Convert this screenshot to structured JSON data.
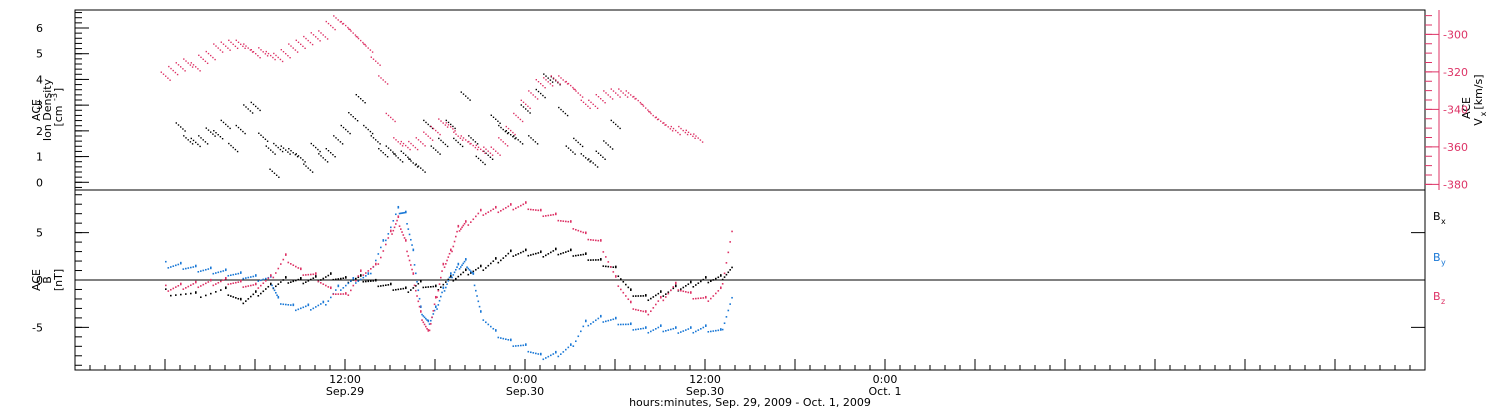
{
  "chart_data": [
    {
      "type": "scatter",
      "panel": "top",
      "ylabel_left": [
        "ACE",
        "Ion Density",
        "[cm",
        "-3",
        "]"
      ],
      "ylabel_right": [
        "ACE",
        "V",
        "x",
        "[km/s]"
      ],
      "ylim_left": [
        -0.3,
        6.7
      ],
      "ylim_right": [
        -383,
        -287
      ],
      "yticks_left": [
        "0",
        "1",
        "2",
        "3",
        "4",
        "5",
        "6"
      ],
      "yticks_right": [
        "-380",
        "-360",
        "-340",
        "-320",
        "-300"
      ],
      "colors": {
        "density": "#000000",
        "velocity": "#dd3366"
      },
      "series": [
        {
          "axis": "left",
          "values": [
            [
              2,
              2.1
            ],
            [
              3,
              1.6
            ],
            [
              4,
              1.5
            ],
            [
              5,
              1.6
            ],
            [
              6,
              1.9
            ],
            [
              7,
              1.8
            ],
            [
              8,
              2.2
            ],
            [
              9,
              1.3
            ],
            [
              10,
              2.0
            ],
            [
              11,
              2.8
            ],
            [
              12,
              2.9
            ],
            [
              13,
              1.7
            ],
            [
              14,
              1.2
            ],
            [
              14.5,
              0.3
            ],
            [
              15,
              1.3
            ],
            [
              16,
              1.2
            ],
            [
              17,
              1.1
            ],
            [
              18,
              0.9
            ],
            [
              19,
              0.5
            ],
            [
              20,
              1.3
            ],
            [
              21,
              0.9
            ],
            [
              22,
              1.1
            ],
            [
              23,
              1.6
            ],
            [
              24,
              2.0
            ],
            [
              25,
              2.5
            ],
            [
              26,
              3.2
            ],
            [
              27,
              2.0
            ],
            [
              28,
              1.6
            ],
            [
              29,
              1.1
            ],
            [
              30,
              1.2
            ],
            [
              31,
              0.9
            ],
            [
              32,
              1.0
            ],
            [
              33,
              0.7
            ],
            [
              34,
              0.5
            ],
            [
              35,
              2.2
            ],
            [
              36,
              1.2
            ],
            [
              37,
              1.5
            ],
            [
              38,
              2.2
            ],
            [
              39,
              1.5
            ],
            [
              40,
              3.3
            ],
            [
              41,
              1.6
            ],
            [
              42,
              0.8
            ],
            [
              43,
              1.0
            ],
            [
              44,
              2.4
            ],
            [
              45,
              2.0
            ],
            [
              46,
              1.8
            ],
            [
              47,
              1.6
            ],
            [
              48,
              2.8
            ],
            [
              49,
              1.6
            ],
            [
              50,
              3.4
            ],
            [
              51,
              4.0
            ],
            [
              52,
              3.9
            ],
            [
              53,
              2.7
            ],
            [
              54,
              1.2
            ],
            [
              55,
              1.5
            ],
            [
              56,
              0.9
            ],
            [
              57,
              0.7
            ],
            [
              58,
              1.0
            ],
            [
              59,
              1.4
            ],
            [
              60,
              2.2
            ]
          ]
        },
        {
          "axis": "right",
          "values": [
            [
              0,
              -323
            ],
            [
              1,
              -320
            ],
            [
              2,
              -318
            ],
            [
              3,
              -316
            ],
            [
              4,
              -318
            ],
            [
              5,
              -314
            ],
            [
              6,
              -312
            ],
            [
              7,
              -308
            ],
            [
              8,
              -307
            ],
            [
              9,
              -306
            ],
            [
              10,
              -306
            ],
            [
              11,
              -308
            ],
            [
              12,
              -311
            ],
            [
              13,
              -310
            ],
            [
              14,
              -312
            ],
            [
              15,
              -313
            ],
            [
              16,
              -311
            ],
            [
              17,
              -308
            ],
            [
              18,
              -306
            ],
            [
              19,
              -304
            ],
            [
              20,
              -302
            ],
            [
              21,
              -301
            ],
            [
              22,
              -296
            ],
            [
              23,
              -293
            ],
            [
              24,
              -296
            ],
            [
              25,
              -300
            ],
            [
              26,
              -304
            ],
            [
              27,
              -308
            ],
            [
              28,
              -315
            ],
            [
              29,
              -325
            ],
            [
              30,
              -345
            ],
            [
              31,
              -358
            ],
            [
              32,
              -360
            ],
            [
              33,
              -360
            ],
            [
              34,
              -358
            ],
            [
              35,
              -355
            ],
            [
              36,
              -352
            ],
            [
              37,
              -348
            ],
            [
              38,
              -350
            ],
            [
              39,
              -355
            ],
            [
              40,
              -357
            ],
            [
              41,
              -360
            ],
            [
              42,
              -362
            ],
            [
              43,
              -363
            ],
            [
              44,
              -363
            ],
            [
              45,
              -358
            ],
            [
              46,
              -352
            ],
            [
              47,
              -345
            ],
            [
              48,
              -338
            ],
            [
              49,
              -333
            ],
            [
              50,
              -327
            ],
            [
              51,
              -326
            ],
            [
              52,
              -325
            ],
            [
              53,
              -325
            ],
            [
              54,
              -328
            ],
            [
              55,
              -332
            ],
            [
              56,
              -338
            ],
            [
              57,
              -338
            ],
            [
              58,
              -335
            ],
            [
              59,
              -333
            ],
            [
              60,
              -332
            ],
            [
              61,
              -332
            ],
            [
              62,
              -333
            ],
            [
              63,
              -336
            ],
            [
              64,
              -340
            ],
            [
              65,
              -344
            ],
            [
              66,
              -347
            ],
            [
              67,
              -350
            ],
            [
              68,
              -352
            ],
            [
              69,
              -352
            ],
            [
              70,
              -354
            ],
            [
              71,
              -356
            ]
          ]
        }
      ]
    },
    {
      "type": "scatter",
      "panel": "bottom",
      "ylabel": [
        "ACE",
        "B",
        "[nT]"
      ],
      "ylim": [
        -9.5,
        9.5
      ],
      "yticks": [
        "-5",
        "0",
        "5"
      ],
      "legend": [
        "B",
        "x",
        "B",
        "y",
        "B",
        "z"
      ],
      "legend_placement": "right",
      "series": [
        {
          "name": "Bx",
          "color": "#000000",
          "values": [
            [
              0,
              -1.2
            ],
            [
              4,
              -1.5
            ],
            [
              8,
              -1.0
            ],
            [
              10,
              -2.2
            ],
            [
              12,
              -1.4
            ],
            [
              14,
              -0.6
            ],
            [
              16,
              0.1
            ],
            [
              18,
              0.0
            ],
            [
              20,
              0.2
            ],
            [
              22,
              0.5
            ],
            [
              24,
              0.1
            ],
            [
              26,
              0.3
            ],
            [
              28,
              -0.2
            ],
            [
              30,
              -0.6
            ],
            [
              32,
              -1.0
            ],
            [
              34,
              -0.3
            ],
            [
              36,
              -0.8
            ],
            [
              38,
              0.2
            ],
            [
              40,
              0.9
            ],
            [
              42,
              1.3
            ],
            [
              44,
              2.1
            ],
            [
              46,
              2.9
            ],
            [
              48,
              3.0
            ],
            [
              50,
              2.8
            ],
            [
              52,
              3.1
            ],
            [
              54,
              3.0
            ],
            [
              56,
              2.6
            ],
            [
              58,
              2.0
            ],
            [
              60,
              1.2
            ],
            [
              62,
              -1.2
            ],
            [
              64,
              -1.8
            ],
            [
              66,
              -1.4
            ],
            [
              68,
              -0.8
            ],
            [
              70,
              -0.4
            ],
            [
              72,
              0.1
            ],
            [
              74,
              0.3
            ],
            [
              75.5,
              1.2
            ]
          ]
        },
        {
          "name": "By",
          "color": "#1a78d6",
          "values": [
            [
              0,
              1.7
            ],
            [
              2,
              1.6
            ],
            [
              4,
              1.3
            ],
            [
              6,
              1.1
            ],
            [
              8,
              0.9
            ],
            [
              10,
              0.6
            ],
            [
              12,
              0.3
            ],
            [
              14,
              0.2
            ],
            [
              15,
              -2.0
            ],
            [
              17,
              -2.8
            ],
            [
              19,
              -2.8
            ],
            [
              21,
              -2.5
            ],
            [
              23,
              -0.8
            ],
            [
              25,
              0.0
            ],
            [
              27,
              0.5
            ],
            [
              29,
              4.0
            ],
            [
              31,
              7.5
            ],
            [
              32,
              7.0
            ],
            [
              33,
              3.0
            ],
            [
              34,
              -3.0
            ],
            [
              35,
              -4.5
            ],
            [
              36,
              -3.0
            ],
            [
              37,
              -1.0
            ],
            [
              38,
              0.5
            ],
            [
              39,
              1.5
            ],
            [
              40,
              2.0
            ],
            [
              41,
              0.5
            ],
            [
              42,
              -3.5
            ],
            [
              44,
              -5.5
            ],
            [
              46,
              -6.5
            ],
            [
              48,
              -7.0
            ],
            [
              50,
              -8.0
            ],
            [
              52,
              -7.8
            ],
            [
              54,
              -7.0
            ],
            [
              56,
              -4.5
            ],
            [
              58,
              -4.0
            ],
            [
              60,
              -4.2
            ],
            [
              62,
              -4.8
            ],
            [
              64,
              -5.2
            ],
            [
              66,
              -5.0
            ],
            [
              68,
              -5.2
            ],
            [
              70,
              -5.2
            ],
            [
              72,
              -5.0
            ],
            [
              74,
              -5.4
            ],
            [
              75.5,
              -2.0
            ]
          ]
        },
        {
          "name": "Bz",
          "color": "#dd3366",
          "values": [
            [
              0,
              -0.8
            ],
            [
              2,
              -0.6
            ],
            [
              4,
              -0.4
            ],
            [
              6,
              -0.2
            ],
            [
              8,
              0.0
            ],
            [
              10,
              -0.3
            ],
            [
              12,
              -0.6
            ],
            [
              14,
              0.3
            ],
            [
              16,
              2.5
            ],
            [
              18,
              1.0
            ],
            [
              20,
              0.5
            ],
            [
              22,
              -1.0
            ],
            [
              24,
              -1.6
            ],
            [
              26,
              0.8
            ],
            [
              28,
              1.5
            ],
            [
              30,
              5.0
            ],
            [
              31,
              6.5
            ],
            [
              32,
              4.0
            ],
            [
              33,
              0.5
            ],
            [
              34,
              -3.5
            ],
            [
              35,
              -5.5
            ],
            [
              36,
              -2.0
            ],
            [
              37,
              1.5
            ],
            [
              38,
              3.0
            ],
            [
              39,
              5.5
            ],
            [
              40,
              6.0
            ],
            [
              42,
              7.2
            ],
            [
              44,
              7.5
            ],
            [
              46,
              7.8
            ],
            [
              48,
              8.0
            ],
            [
              50,
              7.2
            ],
            [
              52,
              6.8
            ],
            [
              54,
              6.0
            ],
            [
              56,
              4.8
            ],
            [
              58,
              4.0
            ],
            [
              60,
              0.2
            ],
            [
              62,
              -2.5
            ],
            [
              64,
              -3.5
            ],
            [
              66,
              -2.0
            ],
            [
              68,
              -0.5
            ],
            [
              70,
              -1.5
            ],
            [
              72,
              -2.0
            ],
            [
              74,
              -1.0
            ],
            [
              75.5,
              5.0
            ]
          ]
        }
      ]
    }
  ],
  "x_axis": {
    "range_hours": [
      -6,
      84
    ],
    "ticks": [
      {
        "h": 12,
        "label": "12:00",
        "date": "Sep.29"
      },
      {
        "h": 24,
        "label": "0:00",
        "date": "Sep.30"
      },
      {
        "h": 36,
        "label": "12:00",
        "date": "Sep.30"
      },
      {
        "h": 48,
        "label": "0:00",
        "date": "Oct. 1"
      }
    ],
    "title": "hours:minutes, Sep. 29, 2009 - Oct. 1, 2009"
  }
}
